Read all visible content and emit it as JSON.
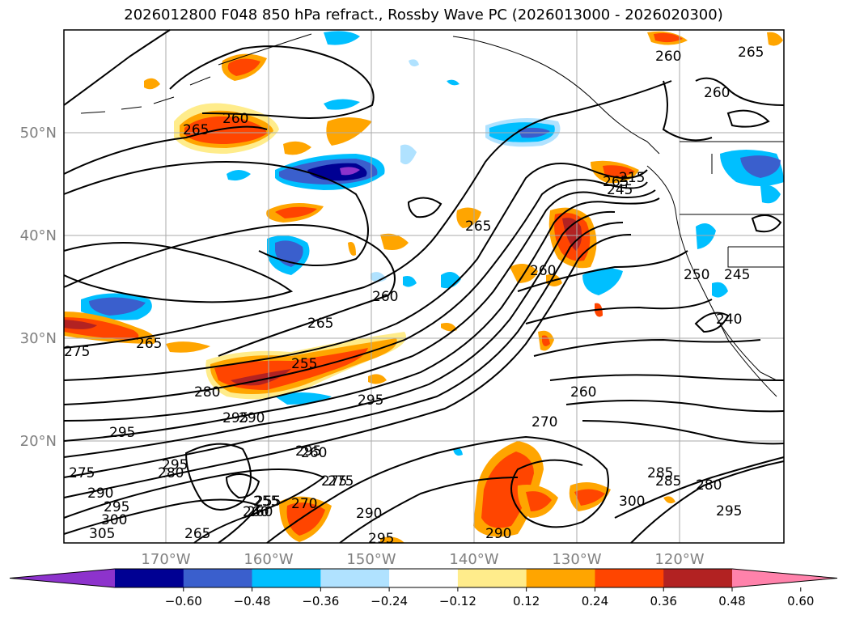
{
  "title": "2026012800 F048 850 hPa refract., Rossby Wave PC (2026013000 - 2026020300)",
  "lat_labels": [
    "50°N",
    "40°N",
    "30°N",
    "20°N"
  ],
  "lon_labels": [
    "170°W",
    "160°W",
    "150°W",
    "140°W",
    "130°W",
    "120°W"
  ],
  "colorbar": {
    "colors": [
      "#8d33cc",
      "#000093",
      "#3a5fcd",
      "#00bfff",
      "#b0e2ff",
      "#ffffff",
      "#ffec8b",
      "#ffa500",
      "#ff4500",
      "#b22222",
      "#ff82ab"
    ],
    "ticks": [
      "−0.60",
      "−0.48",
      "−0.36",
      "−0.24",
      "−0.12",
      "0.12",
      "0.24",
      "0.36",
      "0.48",
      "0.60"
    ]
  },
  "contour_labels": [
    "260",
    "265",
    "260",
    "255",
    "265",
    "260",
    "260",
    "265",
    "265",
    "215",
    "260",
    "245",
    "260",
    "250",
    "245",
    "240",
    "275",
    "265",
    "260",
    "255",
    "280",
    "295",
    "275",
    "295",
    "290",
    "295",
    "270",
    "260",
    "285",
    "280",
    "295",
    "290",
    "295",
    "275",
    "295",
    "290",
    "300",
    "305",
    "265",
    "255",
    "260",
    "270",
    "275",
    "290",
    "295",
    "295",
    "280",
    "285",
    "300",
    "265"
  ]
}
